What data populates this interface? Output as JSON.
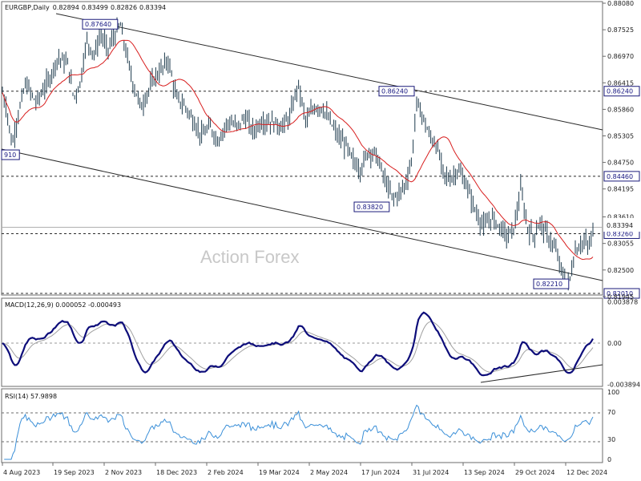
{
  "chart_data": [
    {
      "type": "candlestick",
      "header": "EURGBP,Daily",
      "ohlc": [
        "0.82894",
        "0.83499",
        "0.82826",
        "0.83394"
      ],
      "ylim": [
        0.8201,
        0.8808
      ],
      "y_ticks": [
        "0.88080",
        "0.87525",
        "0.86970",
        "0.86415",
        "0.85860",
        "0.85305",
        "0.84750",
        "0.84195",
        "0.83610",
        "0.83055",
        "0.82500",
        "0.81945"
      ],
      "x_ticks": [
        "4 Aug 2023",
        "19 Sep 2023",
        "2 Nov 2023",
        "18 Dec 2023",
        "2 Feb 2024",
        "19 Mar 2024",
        "2 May 2024",
        "17 Jun 2024",
        "31 Jul 2024",
        "13 Sep 2024",
        "29 Oct 2024",
        "12 Dec 2024"
      ],
      "price_curve": [
        [
          0,
          0.864
        ],
        [
          8,
          0.859
        ],
        [
          15,
          0.851
        ],
        [
          22,
          0.857
        ],
        [
          32,
          0.864
        ],
        [
          45,
          0.86
        ],
        [
          62,
          0.865
        ],
        [
          72,
          0.8695
        ],
        [
          85,
          0.868
        ],
        [
          92,
          0.861
        ],
        [
          100,
          0.864
        ],
        [
          108,
          0.873
        ],
        [
          118,
          0.87
        ],
        [
          126,
          0.8745
        ],
        [
          134,
          0.871
        ],
        [
          143,
          0.874
        ],
        [
          150,
          0.8764
        ],
        [
          158,
          0.87
        ],
        [
          166,
          0.864
        ],
        [
          176,
          0.859
        ],
        [
          184,
          0.862
        ],
        [
          192,
          0.865
        ],
        [
          202,
          0.867
        ],
        [
          210,
          0.869
        ],
        [
          220,
          0.861
        ],
        [
          232,
          0.859
        ],
        [
          242,
          0.856
        ],
        [
          252,
          0.853
        ],
        [
          262,
          0.855
        ],
        [
          272,
          0.852
        ],
        [
          284,
          0.856
        ],
        [
          296,
          0.855
        ],
        [
          306,
          0.857
        ],
        [
          316,
          0.854
        ],
        [
          326,
          0.856
        ],
        [
          338,
          0.856
        ],
        [
          352,
          0.855
        ],
        [
          362,
          0.857
        ],
        [
          372,
          0.864
        ],
        [
          382,
          0.856
        ],
        [
          392,
          0.859
        ],
        [
          402,
          0.859
        ],
        [
          412,
          0.856
        ],
        [
          422,
          0.853
        ],
        [
          432,
          0.851
        ],
        [
          440,
          0.848
        ],
        [
          450,
          0.846
        ],
        [
          460,
          0.85
        ],
        [
          470,
          0.849
        ],
        [
          480,
          0.844
        ],
        [
          490,
          0.84
        ],
        [
          498,
          0.841
        ],
        [
          506,
          0.843
        ],
        [
          514,
          0.848
        ],
        [
          520,
          0.86
        ],
        [
          528,
          0.857
        ],
        [
          536,
          0.853
        ],
        [
          545,
          0.851
        ],
        [
          554,
          0.845
        ],
        [
          562,
          0.844
        ],
        [
          572,
          0.846
        ],
        [
          584,
          0.842
        ],
        [
          594,
          0.837
        ],
        [
          604,
          0.834
        ],
        [
          614,
          0.836
        ],
        [
          624,
          0.834
        ],
        [
          634,
          0.832
        ],
        [
          642,
          0.834
        ],
        [
          650,
          0.842
        ],
        [
          658,
          0.834
        ],
        [
          666,
          0.832
        ],
        [
          674,
          0.835
        ],
        [
          684,
          0.832
        ],
        [
          694,
          0.829
        ],
        [
          702,
          0.824
        ],
        [
          710,
          0.8221
        ],
        [
          718,
          0.829
        ],
        [
          728,
          0.831
        ],
        [
          736,
          0.83
        ],
        [
          741,
          0.8339
        ]
      ],
      "levels": [
        {
          "label": "0.87640",
          "price": 0.8764,
          "kind": "marker"
        },
        {
          "label": "0.86240",
          "price": 0.8624,
          "kind": "line"
        },
        {
          "label": "0.84460",
          "price": 0.8446,
          "kind": "line"
        },
        {
          "label": "0.83820",
          "price": 0.8382,
          "kind": "marker"
        },
        {
          "label": "0.83260",
          "price": 0.8326,
          "kind": "line"
        },
        {
          "label": "0.82210",
          "price": 0.8221,
          "kind": "marker"
        },
        {
          "label": "0.82010",
          "price": 0.8201,
          "kind": "line"
        },
        {
          "label": "910",
          "price": 0.8491,
          "kind": "marker"
        }
      ],
      "current_price": "0.83394",
      "colors": {
        "price": "#1d3a4c",
        "ma": "#d81e1e",
        "channel": "#2a2a2a",
        "levels": "#1a1a7a"
      }
    },
    {
      "type": "line",
      "header": "MACD(12,26,9) 0.000052 -0.000493",
      "y_ticks": [
        "0.003878",
        "0.00",
        "-0.003894"
      ],
      "ylim": [
        -0.00394,
        0.00392
      ],
      "colors": {
        "macd": "#0d0d7a",
        "signal": "#a0a0a0"
      }
    },
    {
      "type": "line",
      "header": "RSI(14) 57.9898",
      "y_ticks": [
        "100",
        "70",
        "30",
        "0"
      ],
      "ylim": [
        0,
        100
      ],
      "colors": {
        "rsi": "#3a8fd8",
        "levels": "#6b6b6b"
      }
    }
  ],
  "watermark": "Action Forex"
}
